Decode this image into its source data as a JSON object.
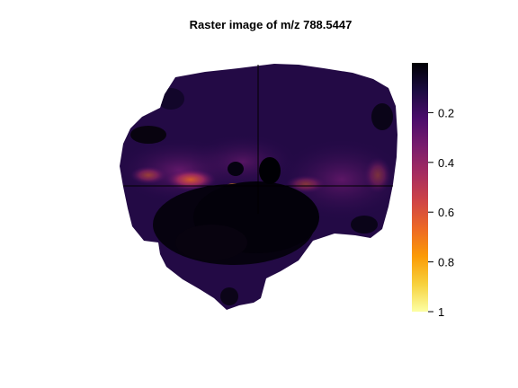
{
  "chart_data": {
    "type": "heatmap",
    "title": "Raster image of m/z 788.5447",
    "xlabel": "",
    "ylabel": "",
    "colorbar": {
      "range": [
        0,
        1
      ],
      "ticks": [
        0.2,
        0.4,
        0.6,
        0.8,
        1
      ],
      "tick_labels": [
        "0.2",
        "0.4",
        "0.6",
        "0.8",
        "1"
      ],
      "colormap": "inferno",
      "stops": [
        "#000004",
        "#1b0c41",
        "#4a0c6b",
        "#781c6d",
        "#a52c60",
        "#cf4446",
        "#ed6925",
        "#fb9b06",
        "#f7d13d",
        "#fcffa4"
      ],
      "direction": "low values at top, high values at bottom"
    },
    "crosshair": true,
    "grid": false,
    "legend": "colorbar at right"
  }
}
